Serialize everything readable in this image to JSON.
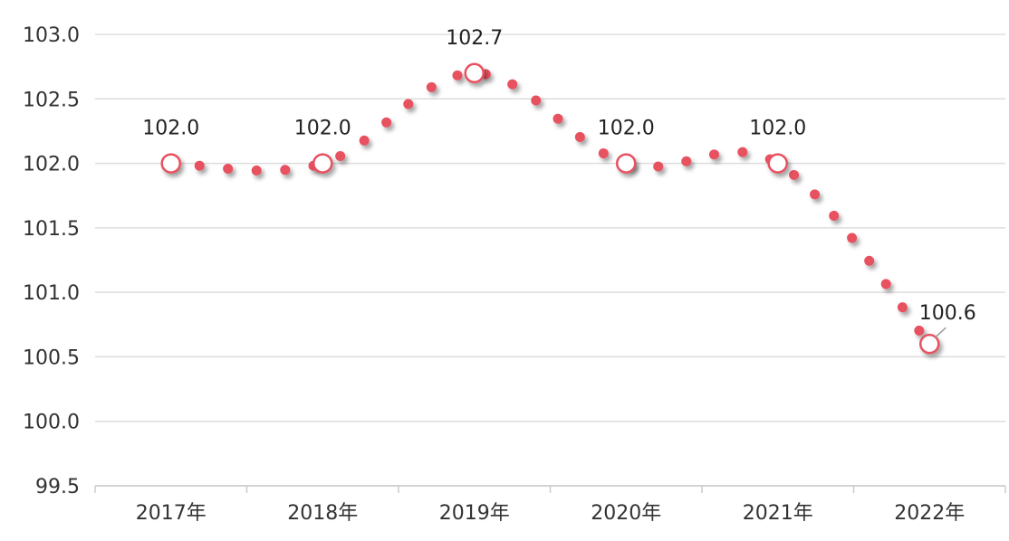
{
  "chart_data": {
    "type": "line",
    "title": "",
    "xlabel": "",
    "ylabel": "",
    "categories": [
      "2017年",
      "2018年",
      "2019年",
      "2020年",
      "2021年",
      "2022年"
    ],
    "ylim": [
      99.5,
      103.0
    ],
    "yticks": [
      "103.0",
      "102.5",
      "102.0",
      "101.5",
      "101.0",
      "100.5",
      "100.0",
      "99.5"
    ],
    "grid": true,
    "legend": "none",
    "series": [
      {
        "values": [
          102.0,
          102.0,
          102.7,
          102.0,
          102.0,
          100.6
        ],
        "labels": [
          "102.0",
          "102.0",
          "102.7",
          "102.0",
          "102.0",
          "100.6"
        ]
      }
    ],
    "colors": {
      "line": "#e8515f",
      "marker_fill": "#ffffff",
      "grid": "#dddddd",
      "axis": "#cccccc"
    }
  }
}
